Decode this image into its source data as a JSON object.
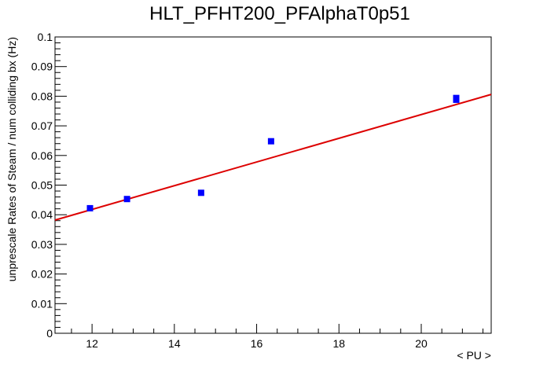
{
  "chart_data": {
    "type": "scatter",
    "title": "HLT_PFHT200_PFAlphaT0p51",
    "xlabel": "< PU >",
    "ylabel": "unprescale Rates of Steam / num colliding bx (Hz)",
    "xlim": [
      11.1,
      21.7
    ],
    "ylim": [
      0,
      0.1
    ],
    "x_ticks": [
      12,
      14,
      16,
      18,
      20
    ],
    "x_tick_labels": [
      "12",
      "14",
      "16",
      "18",
      "20"
    ],
    "y_ticks": [
      0,
      0.01,
      0.02,
      0.03,
      0.04,
      0.05,
      0.06,
      0.07,
      0.08,
      0.09,
      0.1
    ],
    "y_tick_labels": [
      "0",
      "0.01",
      "0.02",
      "0.03",
      "0.04",
      "0.05",
      "0.06",
      "0.07",
      "0.08",
      "0.09",
      "0.1"
    ],
    "grid": false,
    "legend": "none",
    "series": [
      {
        "type": "scatter",
        "color": "#0000ff",
        "marker": "square",
        "x": [
          11.95,
          12.85,
          14.65,
          16.35,
          20.85,
          20.85
        ],
        "y": [
          0.0422,
          0.0453,
          0.0474,
          0.0648,
          0.0788,
          0.0794
        ]
      },
      {
        "type": "line",
        "color": "#dd0000",
        "x": [
          11.1,
          21.7
        ],
        "y": [
          0.0382,
          0.0806
        ]
      }
    ]
  }
}
